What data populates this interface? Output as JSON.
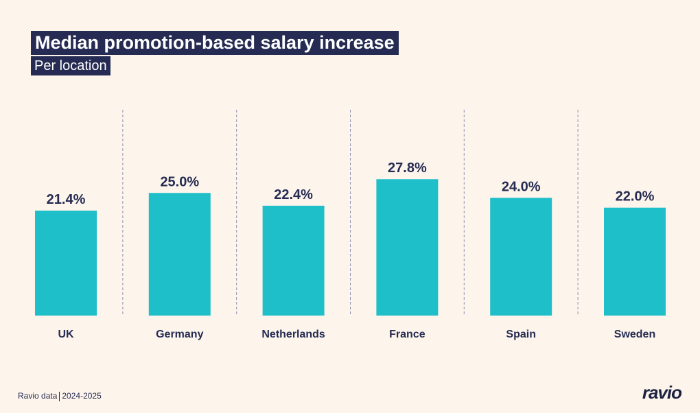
{
  "chart_data": {
    "type": "bar",
    "title": "Median promotion-based salary increase",
    "subtitle": "Per location",
    "categories": [
      "UK",
      "Germany",
      "Netherlands",
      "France",
      "Spain",
      "Sweden"
    ],
    "values": [
      21.4,
      25.0,
      22.4,
      27.8,
      24.0,
      22.0
    ],
    "data_labels": [
      "21.4%",
      "25.0%",
      "22.4%",
      "27.8%",
      "24.0%",
      "22.0%"
    ],
    "xlabel": "",
    "ylabel": "",
    "ylim": [
      0,
      30
    ],
    "grid": false,
    "separators": "dashed vertical between categories",
    "bar_color": "#1fbfc9",
    "text_color": "#252b52",
    "background": "#fdf5ec"
  },
  "footer": {
    "source": "Ravio data",
    "period": "2024-2025"
  },
  "logo": "ravio"
}
